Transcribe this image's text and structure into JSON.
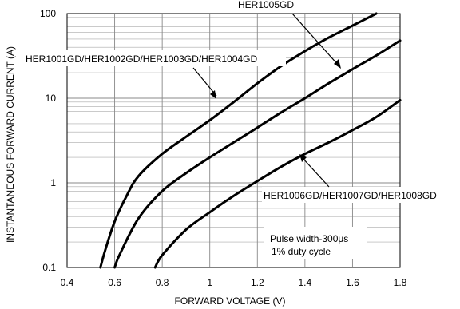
{
  "chart_data": {
    "type": "line",
    "xlabel": "FORWARD VOLTAGE (V)",
    "ylabel": "INSTANTANEOUS FORWARD CURRENT (A)",
    "xlim": [
      0.4,
      1.8
    ],
    "ylim": [
      0.1,
      100
    ],
    "yscale": "log",
    "grid": true,
    "x_ticks": [
      "0.4",
      "0.6",
      "0.8",
      "1",
      "1.2",
      "1.4",
      "1.6",
      "1.8"
    ],
    "y_ticks": [
      "0.1",
      "1",
      "10",
      "100"
    ],
    "series": [
      {
        "name": "HER1001GD/HER1002GD/HER1003GD/HER1004GD",
        "points": [
          [
            0.54,
            0.1
          ],
          [
            0.56,
            0.16
          ],
          [
            0.6,
            0.35
          ],
          [
            0.65,
            0.7
          ],
          [
            0.7,
            1.2
          ],
          [
            0.8,
            2.2
          ],
          [
            0.9,
            3.5
          ],
          [
            1.0,
            5.5
          ],
          [
            1.1,
            9
          ],
          [
            1.2,
            15
          ],
          [
            1.3,
            24
          ],
          [
            1.4,
            36
          ],
          [
            1.5,
            52
          ],
          [
            1.6,
            72
          ],
          [
            1.7,
            100
          ]
        ]
      },
      {
        "name": "HER1005GD",
        "points": [
          [
            0.6,
            0.1
          ],
          [
            0.62,
            0.14
          ],
          [
            0.7,
            0.38
          ],
          [
            0.8,
            0.8
          ],
          [
            0.9,
            1.3
          ],
          [
            1.0,
            2.0
          ],
          [
            1.1,
            3.0
          ],
          [
            1.2,
            4.5
          ],
          [
            1.3,
            6.8
          ],
          [
            1.4,
            10
          ],
          [
            1.5,
            15
          ],
          [
            1.6,
            22
          ],
          [
            1.7,
            32
          ],
          [
            1.8,
            48
          ]
        ]
      },
      {
        "name": "HER1006GD/HER1007GD/HER1008GD",
        "points": [
          [
            0.77,
            0.1
          ],
          [
            0.8,
            0.14
          ],
          [
            0.9,
            0.28
          ],
          [
            1.0,
            0.45
          ],
          [
            1.1,
            0.7
          ],
          [
            1.2,
            1.05
          ],
          [
            1.3,
            1.55
          ],
          [
            1.4,
            2.2
          ],
          [
            1.5,
            3.0
          ],
          [
            1.6,
            4.2
          ],
          [
            1.7,
            6.0
          ],
          [
            1.8,
            9.5
          ]
        ]
      }
    ],
    "annotations": {
      "pulse_line1": "Pulse width-300μs",
      "pulse_line2": "1% duty cycle"
    }
  }
}
